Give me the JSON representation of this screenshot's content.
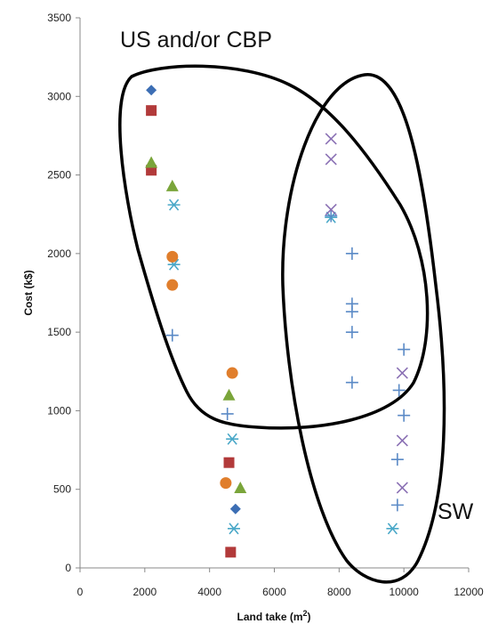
{
  "chart_data": {
    "type": "scatter",
    "title": "",
    "xlabel": "Land take (m",
    "xlabel_sup": "2",
    "xlabel_close": ")",
    "ylabel": "Cost (k$)",
    "xlim": [
      0,
      12000
    ],
    "ylim": [
      0,
      3500
    ],
    "xticks": [
      "0",
      "2000",
      "4000",
      "6000",
      "8000",
      "10000",
      "12000"
    ],
    "yticks": [
      "0",
      "500",
      "1000",
      "1500",
      "2000",
      "2500",
      "3000",
      "3500"
    ],
    "grid": false,
    "legend": "none",
    "annotations": [
      {
        "text": "US and/or CBP"
      },
      {
        "text": "SW"
      }
    ],
    "series": [
      {
        "marker": "diamond",
        "color": "#3c6eb4",
        "points": [
          [
            2200,
            3040
          ],
          [
            4800,
            375
          ]
        ]
      },
      {
        "marker": "square",
        "color": "#b23a3a",
        "points": [
          [
            2200,
            2910
          ],
          [
            2200,
            2530
          ],
          [
            4600,
            670
          ],
          [
            4650,
            100
          ]
        ]
      },
      {
        "marker": "triangle",
        "color": "#7aa53a",
        "points": [
          [
            2200,
            2580
          ],
          [
            2850,
            2430
          ],
          [
            4600,
            1100
          ],
          [
            4950,
            510
          ]
        ]
      },
      {
        "marker": "asterisk",
        "color": "#4aa8c8",
        "points": [
          [
            2900,
            2310
          ],
          [
            2900,
            1930
          ],
          [
            4700,
            820
          ],
          [
            4750,
            250
          ],
          [
            9650,
            250
          ],
          [
            7750,
            2230
          ]
        ]
      },
      {
        "marker": "circle",
        "color": "#e07e2c",
        "points": [
          [
            2850,
            1980
          ],
          [
            2850,
            1800
          ],
          [
            4700,
            1240
          ],
          [
            4500,
            540
          ]
        ]
      },
      {
        "marker": "plus",
        "color": "#5b8ac6",
        "points": [
          [
            2850,
            1480
          ],
          [
            4550,
            980
          ],
          [
            8400,
            2000
          ],
          [
            8400,
            1680
          ],
          [
            8400,
            1630
          ],
          [
            8400,
            1500
          ],
          [
            8400,
            1180
          ],
          [
            10000,
            1390
          ],
          [
            9850,
            1130
          ],
          [
            10000,
            970
          ],
          [
            9800,
            690
          ],
          [
            9800,
            400
          ],
          [
            7750,
            2240
          ]
        ]
      },
      {
        "marker": "cross",
        "color": "#8a70b4",
        "points": [
          [
            7750,
            2730
          ],
          [
            7750,
            2600
          ],
          [
            7750,
            2280
          ],
          [
            9950,
            1240
          ],
          [
            9950,
            810
          ],
          [
            9950,
            510
          ]
        ]
      }
    ]
  }
}
